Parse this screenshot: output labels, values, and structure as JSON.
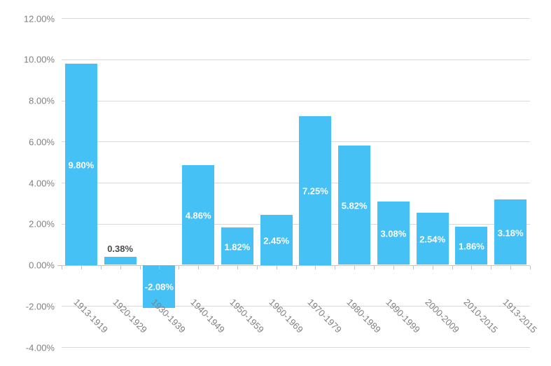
{
  "chart_data": {
    "type": "bar",
    "title": "",
    "xlabel": "",
    "ylabel": "",
    "categories": [
      "1913-1919",
      "1920-1929",
      "1930-1939",
      "1940-1949",
      "1950-1959",
      "1960-1969",
      "1970-1979",
      "1980-1989",
      "1990-1999",
      "2000-2009",
      "2010-2015",
      "1913-2015"
    ],
    "values": [
      9.8,
      0.38,
      -2.08,
      4.86,
      1.82,
      2.45,
      7.25,
      5.82,
      3.08,
      2.54,
      1.86,
      3.18
    ],
    "value_labels": [
      "9.80%",
      "0.38%",
      "-2.08%",
      "4.86%",
      "1.82%",
      "2.45%",
      "7.25%",
      "5.82%",
      "3.08%",
      "2.54%",
      "1.86%",
      "3.18%"
    ],
    "ylim": [
      -4,
      12
    ],
    "ytick_step": 2,
    "ytick_labels_top_to_bottom": [
      "12.00%",
      "10.00%",
      "8.00%",
      "6.00%",
      "4.00%",
      "2.00%",
      "0.00%",
      "-2.00%",
      "-4.00%"
    ],
    "grid": true,
    "legend": false,
    "x_label_rotation_deg": 45,
    "colors": {
      "bar": "#46C1F5",
      "label_inside": "#FFFFFF",
      "label_outside": "#4D4D4D",
      "axis_text": "#808080",
      "gridline": "#D9D9D9",
      "zero_axis": "#C6C6C6",
      "tick": "#BFBFBF",
      "background": "#FFFFFF"
    }
  }
}
